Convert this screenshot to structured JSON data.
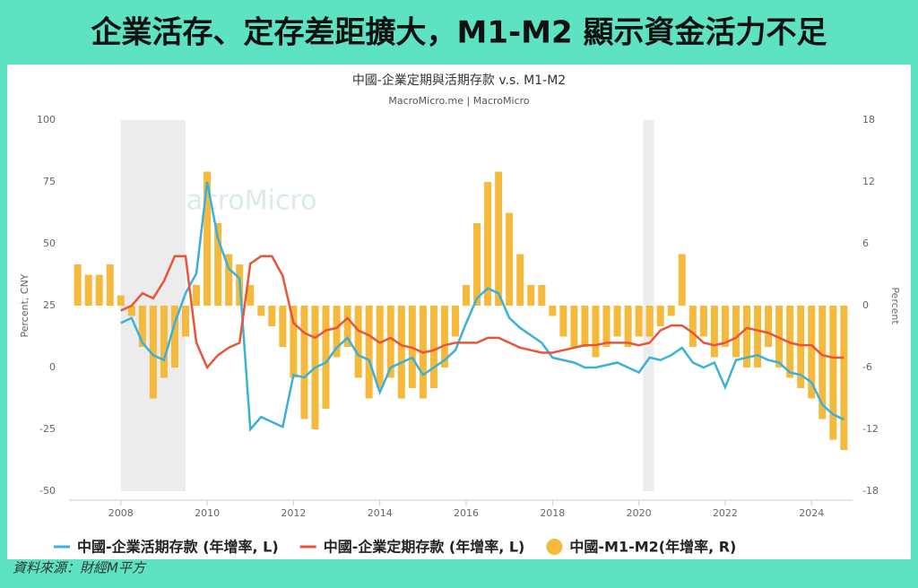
{
  "header": {
    "title": "企業活存、定存差距擴大，M1-M2 顯示資金活力不足"
  },
  "chart_data": {
    "type": "combo",
    "title": "中國-企業定期與活期存款 v.s. M1-M2",
    "subtitle": "MacroMicro.me | MacroMicro",
    "watermark": "MacroMicro",
    "y_label": "Percent, CNY",
    "y2_label": "Percent",
    "x": [
      2007,
      2007.25,
      2007.5,
      2007.75,
      2008,
      2008.25,
      2008.5,
      2008.75,
      2009,
      2009.25,
      2009.5,
      2009.75,
      2010,
      2010.25,
      2010.5,
      2010.75,
      2011,
      2011.25,
      2011.5,
      2011.75,
      2012,
      2012.25,
      2012.5,
      2012.75,
      2013,
      2013.25,
      2013.5,
      2013.75,
      2014,
      2014.25,
      2014.5,
      2014.75,
      2015,
      2015.25,
      2015.5,
      2015.75,
      2016,
      2016.25,
      2016.5,
      2016.75,
      2017,
      2017.25,
      2017.5,
      2017.75,
      2018,
      2018.25,
      2018.5,
      2018.75,
      2019,
      2019.25,
      2019.5,
      2019.75,
      2020,
      2020.25,
      2020.5,
      2020.75,
      2021,
      2021.25,
      2021.5,
      2021.75,
      2022,
      2022.25,
      2022.5,
      2022.75,
      2023,
      2023.25,
      2023.5,
      2023.75,
      2024,
      2024.25,
      2024.5,
      2024.75
    ],
    "xlim": [
      2006.8,
      2024.95
    ],
    "xticks": [
      2008,
      2010,
      2012,
      2014,
      2016,
      2018,
      2020,
      2022,
      2024
    ],
    "ylim": [
      -50,
      100
    ],
    "yticks": [
      -50,
      -25,
      0,
      25,
      50,
      75,
      100
    ],
    "y2lim": [
      -18,
      18
    ],
    "y2ticks": [
      -18,
      -12,
      -6,
      0,
      6,
      12,
      18
    ],
    "shaded": [
      [
        2008,
        2009.5
      ],
      [
        2020.1,
        2020.35
      ]
    ],
    "series": [
      {
        "name": "中國-企業活期存款 (年增率, L)",
        "color": "#3cb1d8",
        "kind": "line",
        "values": [
          null,
          null,
          null,
          null,
          18,
          20,
          10,
          5,
          3,
          18,
          30,
          38,
          75,
          52,
          40,
          36,
          -25,
          -20,
          -22,
          -24,
          -3,
          -4,
          0,
          2,
          8,
          12,
          5,
          3,
          -10,
          0,
          2,
          4,
          -3,
          0,
          3,
          7,
          18,
          28,
          32,
          30,
          20,
          16,
          13,
          10,
          4,
          3,
          2,
          0,
          0,
          1,
          2,
          0,
          -2,
          4,
          3,
          5,
          8,
          2,
          0,
          2,
          -8,
          3,
          4,
          5,
          3,
          2,
          -2,
          -3,
          -6,
          -15,
          -19,
          -21
        ]
      },
      {
        "name": "中國-企業定期存款 (年增率, L)",
        "color": "#e8553a",
        "kind": "line",
        "values": [
          null,
          null,
          null,
          null,
          23,
          25,
          30,
          28,
          35,
          45,
          45,
          10,
          0,
          5,
          8,
          10,
          42,
          45,
          45,
          37,
          18,
          14,
          12,
          15,
          16,
          20,
          15,
          13,
          10,
          12,
          9,
          8,
          6,
          7,
          9,
          10,
          10,
          10,
          12,
          12,
          10,
          8,
          7,
          6,
          6,
          7,
          8,
          9,
          9,
          10,
          10,
          10,
          9,
          10,
          15,
          17,
          17,
          14,
          10,
          9,
          10,
          12,
          16,
          15,
          14,
          12,
          10,
          9,
          9,
          5,
          4,
          4
        ]
      },
      {
        "name": "中國-M1-M2(年增率, R)",
        "color": "#f5b93c",
        "kind": "bar",
        "axis": "y2",
        "values": [
          4,
          3,
          3,
          4,
          1,
          -1,
          -4,
          -9,
          -7,
          -6,
          -3,
          2,
          13,
          8,
          5,
          4,
          2,
          -1,
          -2,
          -4,
          -7,
          -11,
          -12,
          -10,
          -5,
          -4,
          -7,
          -9,
          -8,
          -7,
          -9,
          -8,
          -9,
          -8,
          -6,
          -3,
          2,
          8,
          12,
          13,
          9,
          5,
          2,
          2,
          -1,
          -3,
          -4,
          -4,
          -5,
          -4,
          -3,
          -4,
          -3,
          -3,
          -2,
          -1,
          5,
          -4,
          -3,
          -5,
          -4,
          -5,
          -6,
          -6,
          -4,
          -6,
          -7,
          -8,
          -9,
          -11,
          -13,
          -14
        ]
      }
    ],
    "source": "資料來源：財經M平方"
  }
}
